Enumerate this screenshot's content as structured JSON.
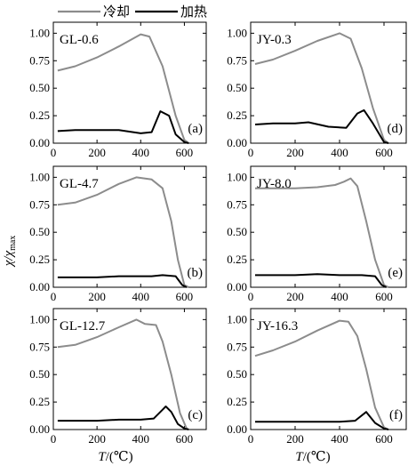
{
  "legend": {
    "cooling_label": "冷却",
    "heating_label": "加热"
  },
  "axes": {
    "y_label": "χ/χmax",
    "x_label_var": "T",
    "x_label_unit": "/(℃)"
  },
  "colors": {
    "cooling": "#8c8c8c",
    "heating": "#000000"
  },
  "chart_data": [
    {
      "type": "line",
      "sample": "GL-0.6",
      "panel": "(a)",
      "xlim": [
        0,
        700
      ],
      "ylim": [
        0,
        1.1
      ],
      "xticks": [
        0,
        200,
        400,
        600
      ],
      "yticks": [
        0.0,
        0.25,
        0.5,
        0.75,
        1.0
      ],
      "series": [
        {
          "name": "冷却",
          "x": [
            20,
            100,
            200,
            300,
            400,
            440,
            500,
            560,
            600,
            620
          ],
          "y": [
            0.66,
            0.7,
            0.78,
            0.88,
            0.99,
            0.97,
            0.7,
            0.25,
            0.03,
            0.0
          ]
        },
        {
          "name": "加热",
          "x": [
            20,
            100,
            200,
            300,
            400,
            450,
            490,
            530,
            560,
            600,
            620
          ],
          "y": [
            0.11,
            0.12,
            0.12,
            0.12,
            0.09,
            0.1,
            0.29,
            0.25,
            0.08,
            0.01,
            0.0
          ]
        }
      ]
    },
    {
      "type": "line",
      "sample": "JY-0.3",
      "panel": "(d)",
      "xlim": [
        0,
        700
      ],
      "ylim": [
        0,
        1.1
      ],
      "xticks": [
        0,
        200,
        400,
        600
      ],
      "yticks": [
        0.0,
        0.25,
        0.5,
        0.75,
        1.0
      ],
      "series": [
        {
          "name": "冷却",
          "x": [
            20,
            100,
            200,
            300,
            400,
            450,
            500,
            550,
            600,
            620
          ],
          "y": [
            0.72,
            0.76,
            0.84,
            0.93,
            1.0,
            0.95,
            0.68,
            0.32,
            0.03,
            0.0
          ]
        },
        {
          "name": "加热",
          "x": [
            20,
            100,
            200,
            260,
            350,
            430,
            480,
            510,
            550,
            600,
            620
          ],
          "y": [
            0.17,
            0.18,
            0.18,
            0.19,
            0.15,
            0.14,
            0.27,
            0.3,
            0.18,
            0.01,
            0.0
          ]
        }
      ]
    },
    {
      "type": "line",
      "sample": "GL-4.7",
      "panel": "(b)",
      "xlim": [
        0,
        700
      ],
      "ylim": [
        0,
        1.1
      ],
      "xticks": [
        0,
        200,
        400,
        600
      ],
      "yticks": [
        0.0,
        0.25,
        0.5,
        0.75,
        1.0
      ],
      "series": [
        {
          "name": "冷却",
          "x": [
            20,
            100,
            200,
            300,
            380,
            450,
            500,
            540,
            570,
            600,
            620
          ],
          "y": [
            0.75,
            0.77,
            0.84,
            0.94,
            1.0,
            0.98,
            0.9,
            0.6,
            0.25,
            0.02,
            0.0
          ]
        },
        {
          "name": "加热",
          "x": [
            20,
            100,
            200,
            300,
            400,
            450,
            500,
            560,
            590,
            610
          ],
          "y": [
            0.09,
            0.09,
            0.09,
            0.1,
            0.1,
            0.1,
            0.11,
            0.1,
            0.02,
            0.0
          ]
        }
      ]
    },
    {
      "type": "line",
      "sample": "JY-8.0",
      "panel": "(e)",
      "xlim": [
        0,
        700
      ],
      "ylim": [
        0,
        1.1
      ],
      "xticks": [
        0,
        200,
        400,
        600
      ],
      "yticks": [
        0.0,
        0.25,
        0.5,
        0.75,
        1.0
      ],
      "series": [
        {
          "name": "冷却",
          "x": [
            20,
            100,
            200,
            300,
            380,
            420,
            450,
            480,
            520,
            560,
            600,
            620
          ],
          "y": [
            0.9,
            0.9,
            0.9,
            0.91,
            0.93,
            0.96,
            0.99,
            0.92,
            0.6,
            0.25,
            0.02,
            0.0
          ]
        },
        {
          "name": "加热",
          "x": [
            20,
            100,
            200,
            300,
            400,
            500,
            560,
            590,
            610
          ],
          "y": [
            0.11,
            0.11,
            0.11,
            0.12,
            0.11,
            0.11,
            0.1,
            0.02,
            0.0
          ]
        }
      ]
    },
    {
      "type": "line",
      "sample": "GL-12.7",
      "panel": "(c)",
      "xlim": [
        0,
        700
      ],
      "ylim": [
        0,
        1.1
      ],
      "xticks": [
        0,
        200,
        400,
        600
      ],
      "yticks": [
        0.0,
        0.25,
        0.5,
        0.75,
        1.0
      ],
      "series": [
        {
          "name": "冷却",
          "x": [
            20,
            100,
            200,
            300,
            380,
            420,
            470,
            500,
            540,
            580,
            610,
            620
          ],
          "y": [
            0.75,
            0.77,
            0.84,
            0.93,
            1.0,
            0.96,
            0.95,
            0.8,
            0.5,
            0.15,
            0.01,
            0.0
          ]
        },
        {
          "name": "加热",
          "x": [
            20,
            100,
            200,
            300,
            400,
            460,
            500,
            515,
            540,
            570,
            600,
            620
          ],
          "y": [
            0.08,
            0.08,
            0.08,
            0.09,
            0.09,
            0.1,
            0.18,
            0.21,
            0.16,
            0.05,
            0.01,
            0.0
          ]
        }
      ]
    },
    {
      "type": "line",
      "sample": "JY-16.3",
      "panel": "(f)",
      "xlim": [
        0,
        700
      ],
      "ylim": [
        0,
        1.1
      ],
      "xticks": [
        0,
        200,
        400,
        600
      ],
      "yticks": [
        0.0,
        0.25,
        0.5,
        0.75,
        1.0
      ],
      "series": [
        {
          "name": "冷却",
          "x": [
            20,
            100,
            200,
            300,
            400,
            440,
            480,
            520,
            560,
            600,
            620
          ],
          "y": [
            0.67,
            0.72,
            0.8,
            0.9,
            0.99,
            0.98,
            0.85,
            0.55,
            0.2,
            0.02,
            0.0
          ]
        },
        {
          "name": "加热",
          "x": [
            20,
            100,
            200,
            300,
            400,
            470,
            520,
            560,
            600,
            620
          ],
          "y": [
            0.07,
            0.07,
            0.07,
            0.07,
            0.07,
            0.08,
            0.16,
            0.06,
            0.01,
            0.0
          ]
        }
      ]
    }
  ]
}
